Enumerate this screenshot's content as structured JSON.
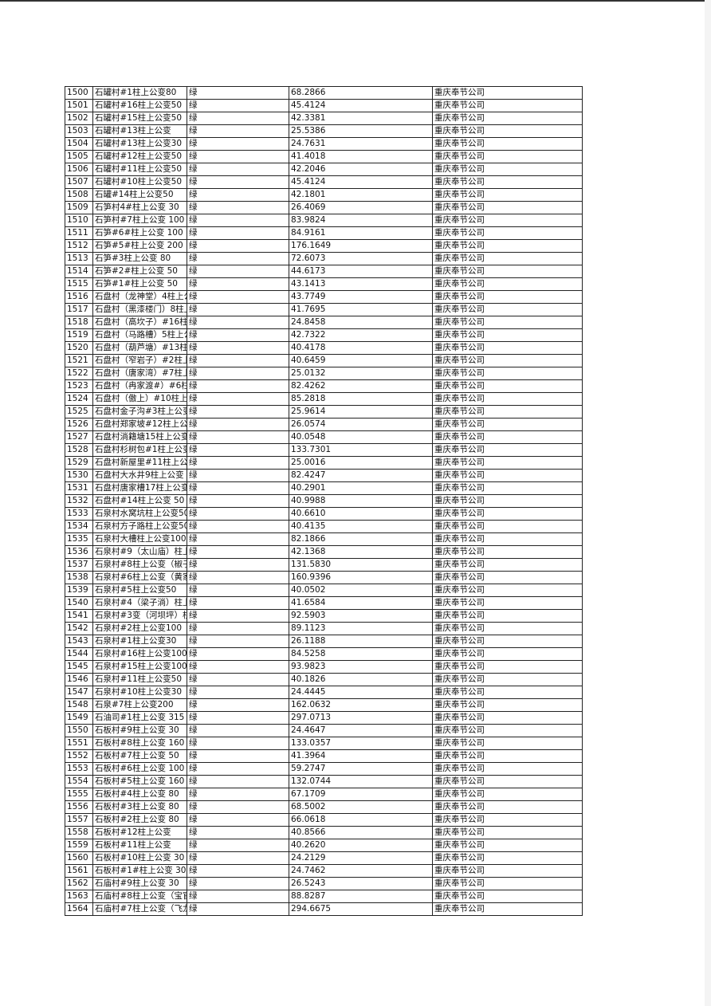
{
  "table": {
    "rows": [
      [
        "1500",
        "石罐村#1柱上公变80",
        "绿",
        "68.2866",
        "重庆奉节公司"
      ],
      [
        "1501",
        "石罐村#16柱上公变50",
        "绿",
        "45.4124",
        "重庆奉节公司"
      ],
      [
        "1502",
        "石罐村#15柱上公变50",
        "绿",
        "42.3381",
        "重庆奉节公司"
      ],
      [
        "1503",
        "石罐村#13柱上公变",
        "绿",
        "25.5386",
        "重庆奉节公司"
      ],
      [
        "1504",
        "石罐村#13柱上公变30",
        "绿",
        "24.7631",
        "重庆奉节公司"
      ],
      [
        "1505",
        "石罐村#12柱上公变50",
        "绿",
        "41.4018",
        "重庆奉节公司"
      ],
      [
        "1506",
        "石罐村#11柱上公变50",
        "绿",
        "42.2046",
        "重庆奉节公司"
      ],
      [
        "1507",
        "石罐村#10柱上公变50",
        "绿",
        "45.4124",
        "重庆奉节公司"
      ],
      [
        "1508",
        "石罐#14柱上公变50",
        "绿",
        "42.1801",
        "重庆奉节公司"
      ],
      [
        "1509",
        "石笋村4#柱上公变 30",
        "绿",
        "26.4069",
        "重庆奉节公司"
      ],
      [
        "1510",
        "石笋村#7柱上公变 100",
        "绿",
        "83.9824",
        "重庆奉节公司"
      ],
      [
        "1511",
        "石笋#6#柱上公变 100",
        "绿",
        "84.9161",
        "重庆奉节公司"
      ],
      [
        "1512",
        "石笋#5#柱上公变  200",
        "绿",
        "176.1649",
        "重庆奉节公司"
      ],
      [
        "1513",
        "石笋#3柱上公变 80",
        "绿",
        "72.6073",
        "重庆奉节公司"
      ],
      [
        "1514",
        "石笋#2#柱上公变 50",
        "绿",
        "44.6173",
        "重庆奉节公司"
      ],
      [
        "1515",
        "石笋#1#柱上公变 50",
        "绿",
        "43.1413",
        "重庆奉节公司"
      ],
      [
        "1516",
        "石盘村（龙神堂）4柱上公",
        "绿",
        "43.7749",
        "重庆奉节公司"
      ],
      [
        "1517",
        "石盘村（黑漆楼门）8柱上",
        "绿",
        "41.7695",
        "重庆奉节公司"
      ],
      [
        "1518",
        "石盘村（高坎子）#16柱上",
        "绿",
        "24.8458",
        "重庆奉节公司"
      ],
      [
        "1519",
        "石盘村（马路槽）5柱上公",
        "绿",
        "42.7322",
        "重庆奉节公司"
      ],
      [
        "1520",
        "石盘村（葫芦塘）#13柱上",
        "绿",
        "40.4178",
        "重庆奉节公司"
      ],
      [
        "1521",
        "石盘村（窄岩子）#2柱上",
        "绿",
        "40.6459",
        "重庆奉节公司"
      ],
      [
        "1522",
        "石盘村（唐家湾）#7柱上",
        "绿",
        "25.0132",
        "重庆奉节公司"
      ],
      [
        "1523",
        "石盘村（冉家渡#）#6柱上",
        "绿",
        "82.4262",
        "重庆奉节公司"
      ],
      [
        "1524",
        "石盘村（傲上）#10柱上公",
        "绿",
        "85.2818",
        "重庆奉节公司"
      ],
      [
        "1525",
        "石盘村金子沟#3柱上公变",
        "绿",
        "25.9614",
        "重庆奉节公司"
      ],
      [
        "1526",
        "石盘村郑家坡#12柱上公变",
        "绿",
        "26.0574",
        "重庆奉节公司"
      ],
      [
        "1527",
        "石盘村淌籍塘15柱上公变",
        "绿",
        "40.0548",
        "重庆奉节公司"
      ],
      [
        "1528",
        "石盘村杉树包#1柱上公变",
        "绿",
        "133.7301",
        "重庆奉节公司"
      ],
      [
        "1529",
        "石盘村新屋里#11柱上公变",
        "绿",
        "25.0016",
        "重庆奉节公司"
      ],
      [
        "1530",
        "石盘村大水井9柱上公变",
        "绿",
        "82.4247",
        "重庆奉节公司"
      ],
      [
        "1531",
        "石盘村唐家槽17柱上公变",
        "绿",
        "40.2901",
        "重庆奉节公司"
      ],
      [
        "1532",
        "石盘村#14柱上公变 50",
        "绿",
        "40.9988",
        "重庆奉节公司"
      ],
      [
        "1533",
        "石泉村水窝坑柱上公变50",
        "绿",
        "40.6610",
        "重庆奉节公司"
      ],
      [
        "1534",
        "石泉村方子路柱上公变50",
        "绿",
        "40.4135",
        "重庆奉节公司"
      ],
      [
        "1535",
        "石泉村大槽柱上公变100",
        "绿",
        "82.1866",
        "重庆奉节公司"
      ],
      [
        "1536",
        "石泉村#9（太山庙）柱上",
        "绿",
        "42.1368",
        "重庆奉节公司"
      ],
      [
        "1537",
        "石泉村#8柱上公变（椒子",
        "绿",
        "131.5830",
        "重庆奉节公司"
      ],
      [
        "1538",
        "石泉村#6柱上公变（黄家",
        "绿",
        "160.9396",
        "重庆奉节公司"
      ],
      [
        "1539",
        "石泉村#5柱上公变50",
        "绿",
        "40.0502",
        "重庆奉节公司"
      ],
      [
        "1540",
        "石泉村#4（梁子淌）柱上",
        "绿",
        "41.6584",
        "重庆奉节公司"
      ],
      [
        "1541",
        "石泉村#3变（河坝坪）柱",
        "绿",
        "92.5903",
        "重庆奉节公司"
      ],
      [
        "1542",
        "石泉村#2柱上公变100",
        "绿",
        "89.1123",
        "重庆奉节公司"
      ],
      [
        "1543",
        "石泉村#1柱上公变30",
        "绿",
        "26.1188",
        "重庆奉节公司"
      ],
      [
        "1544",
        "石泉村#16柱上公变100",
        "绿",
        "84.5258",
        "重庆奉节公司"
      ],
      [
        "1545",
        "石泉村#15柱上公变100",
        "绿",
        "93.9823",
        "重庆奉节公司"
      ],
      [
        "1546",
        "石泉村#11柱上公变50",
        "绿",
        "40.1826",
        "重庆奉节公司"
      ],
      [
        "1547",
        "石泉村#10柱上公变30",
        "绿",
        "24.4445",
        "重庆奉节公司"
      ],
      [
        "1548",
        "石泉#7柱上公变200",
        "绿",
        "162.0632",
        "重庆奉节公司"
      ],
      [
        "1549",
        "石油司#1柱上公变 315",
        "绿",
        "297.0713",
        "重庆奉节公司"
      ],
      [
        "1550",
        "石板村#9柱上公变 30",
        "绿",
        "24.4647",
        "重庆奉节公司"
      ],
      [
        "1551",
        "石板村#8柱上公变 160",
        "绿",
        "133.0357",
        "重庆奉节公司"
      ],
      [
        "1552",
        "石板村#7柱上公变 50",
        "绿",
        "41.3964",
        "重庆奉节公司"
      ],
      [
        "1553",
        "石板村#6柱上公变 100",
        "绿",
        "59.2747",
        "重庆奉节公司"
      ],
      [
        "1554",
        "石板村#5柱上公变  160",
        "绿",
        "132.0744",
        "重庆奉节公司"
      ],
      [
        "1555",
        "石板村#4柱上公变 80",
        "绿",
        "67.1709",
        "重庆奉节公司"
      ],
      [
        "1556",
        "石板村#3柱上公变 80",
        "绿",
        "68.5002",
        "重庆奉节公司"
      ],
      [
        "1557",
        "石板村#2柱上公变 80",
        "绿",
        "66.0618",
        "重庆奉节公司"
      ],
      [
        "1558",
        "石板村#12柱上公变",
        "绿",
        "40.8566",
        "重庆奉节公司"
      ],
      [
        "1559",
        "石板村#11柱上公变",
        "绿",
        "40.2620",
        "重庆奉节公司"
      ],
      [
        "1560",
        "石板村#10柱上公变  30",
        "绿",
        "24.2129",
        "重庆奉节公司"
      ],
      [
        "1561",
        "石板村#1#柱上公变 30",
        "绿",
        "24.7462",
        "重庆奉节公司"
      ],
      [
        "1562",
        "石庙村#9柱上公变  30",
        "绿",
        "26.5243",
        "重庆奉节公司"
      ],
      [
        "1563",
        "石庙村#8柱上公变（宝官",
        "绿",
        "88.8287",
        "重庆奉节公司"
      ],
      [
        "1564",
        "石庙村#7柱上公变（飞龙",
        "绿",
        "294.6675",
        "重庆奉节公司"
      ]
    ]
  }
}
